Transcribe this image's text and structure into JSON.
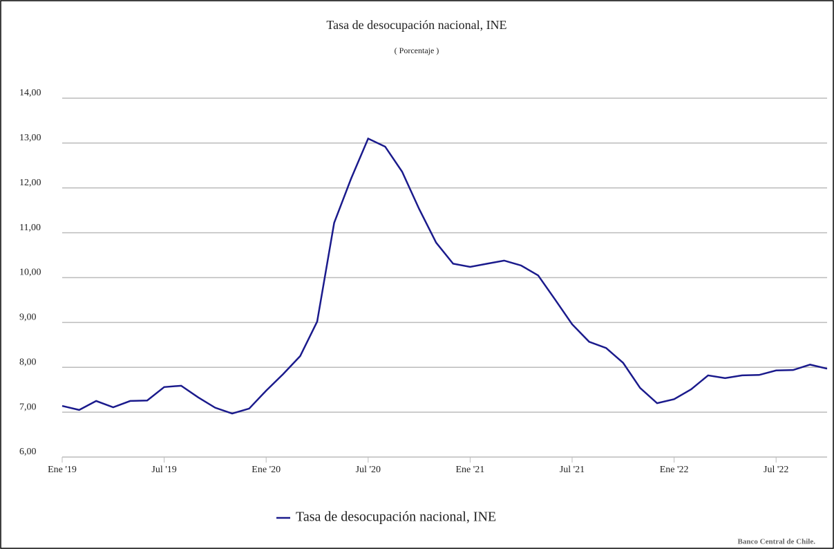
{
  "chart_data": {
    "type": "line",
    "title": "Tasa de desocupación nacional, INE",
    "subtitle": "( Porcentaje )",
    "source": "Banco Central de Chile.",
    "categories": [
      "Ene '19",
      null,
      null,
      null,
      null,
      null,
      "Jul '19",
      null,
      null,
      null,
      null,
      null,
      "Ene '20",
      null,
      null,
      null,
      null,
      null,
      "Jul '20",
      null,
      null,
      null,
      null,
      null,
      "Ene '21",
      null,
      null,
      null,
      null,
      null,
      "Jul '21",
      null,
      null,
      null,
      null,
      null,
      "Ene '22",
      null,
      null,
      null,
      null,
      null,
      "Jul '22",
      null,
      null,
      null
    ],
    "series": [
      {
        "name": "Tasa de desocupación nacional, INE",
        "color": "#1a1a8c",
        "values": [
          7.14,
          7.05,
          7.25,
          7.11,
          7.25,
          7.26,
          7.56,
          7.59,
          7.33,
          7.1,
          6.97,
          7.08,
          7.48,
          7.85,
          8.25,
          9.02,
          11.22,
          12.21,
          13.1,
          12.92,
          12.36,
          11.53,
          10.78,
          10.31,
          10.24,
          10.31,
          10.38,
          10.27,
          10.05,
          9.51,
          8.96,
          8.57,
          8.43,
          8.1,
          7.54,
          7.2,
          7.29,
          7.51,
          7.82,
          7.76,
          7.82,
          7.83,
          7.93,
          7.94,
          8.06,
          7.97
        ]
      }
    ],
    "ylim": [
      6,
      14
    ],
    "yticks": [
      {
        "value": 6,
        "label": "6,00"
      },
      {
        "value": 7,
        "label": "7,00"
      },
      {
        "value": 8,
        "label": "8,00"
      },
      {
        "value": 9,
        "label": "9,00"
      },
      {
        "value": 10,
        "label": "10,00"
      },
      {
        "value": 11,
        "label": "11,00"
      },
      {
        "value": 12,
        "label": "12,00"
      },
      {
        "value": 13,
        "label": "13,00"
      },
      {
        "value": 14,
        "label": "14,00"
      }
    ],
    "grid": true,
    "legend": "bottom"
  }
}
